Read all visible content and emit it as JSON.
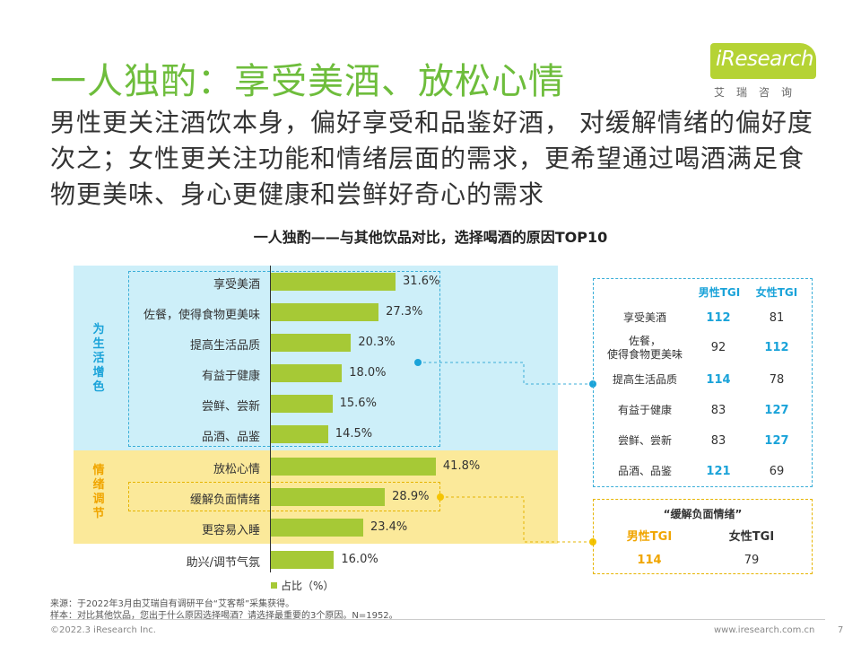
{
  "header": {
    "title": "一人独酌：享受美酒、放松心情",
    "subtitle": "男性更关注酒饮本身，偏好享受和品鉴好酒， 对缓解情绪的偏好度次之；女性更关注功能和情绪层面的需求，更希望通过喝酒满足食物更美味、身心更健康和尝鲜好奇心的需求"
  },
  "logo": {
    "name": "iResearch",
    "sub": "艾瑞咨询"
  },
  "chart_data": {
    "type": "bar",
    "orientation": "horizontal",
    "title": "一人独酌——与其他饮品对比，选择喝酒的原因TOP10",
    "groups": [
      {
        "label": "为生活增色",
        "start": 0,
        "end": 5
      },
      {
        "label": "情绪调节",
        "start": 6,
        "end": 9
      }
    ],
    "categories": [
      "享受美酒",
      "佐餐，使得食物更美味",
      "提高生活品质",
      "有益于健康",
      "尝鲜、尝新",
      "品酒、品鉴",
      "放松心情",
      "缓解负面情绪",
      "更容易入睡",
      "助兴/调节气氛"
    ],
    "series": [
      {
        "name": "占比（%）",
        "values": [
          31.6,
          27.3,
          20.3,
          18.0,
          15.6,
          14.5,
          41.8,
          28.9,
          23.4,
          16.0
        ]
      }
    ],
    "value_labels": [
      "31.6%",
      "27.3%",
      "20.3%",
      "18.0%",
      "15.6%",
      "14.5%",
      "41.8%",
      "28.9%",
      "23.4%",
      "16.0%"
    ],
    "xlim": [
      0,
      100
    ],
    "legend": "bottom",
    "color": "#a6c936"
  },
  "tgi_table": {
    "headers": [
      "男性TGI",
      "女性TGI"
    ],
    "rows": [
      {
        "label": "享受美酒",
        "male": "112",
        "female": "81",
        "highlight": "male"
      },
      {
        "label": "佐餐，使得食物更美味",
        "label_lines": [
          "佐餐，",
          "使得食物更美味"
        ],
        "male": "92",
        "female": "112",
        "highlight": "female"
      },
      {
        "label": "提高生活品质",
        "male": "114",
        "female": "78",
        "highlight": "male"
      },
      {
        "label": "有益于健康",
        "male": "83",
        "female": "127",
        "highlight": "female"
      },
      {
        "label": "尝鲜、尝新",
        "male": "83",
        "female": "127",
        "highlight": "female"
      },
      {
        "label": "品酒、品鉴",
        "male": "121",
        "female": "69",
        "highlight": "male"
      }
    ]
  },
  "relief_table": {
    "title": "“缓解负面情绪”",
    "male_header": "男性TGI",
    "female_header": "女性TGI",
    "male": "114",
    "female": "79"
  },
  "notes": {
    "source": "来源：于2022年3月由艾瑞自有调研平台“艾客帮”采集获得。",
    "sample": "样本：对比其他饮品，您出于什么原因选择喝酒？请选择最重要的3个原因。N=1952。"
  },
  "footer": {
    "copyright": "©2022.3 iResearch Inc.",
    "website": "www.iresearch.com.cn",
    "page": "7"
  },
  "colors": {
    "title_green": "#6ebd3c",
    "bar_green": "#a6c936",
    "panel_blue": "#cdeff9",
    "panel_yellow": "#fbe99a",
    "accent_blue": "#1aa3d9",
    "accent_yellow": "#f0a500"
  }
}
